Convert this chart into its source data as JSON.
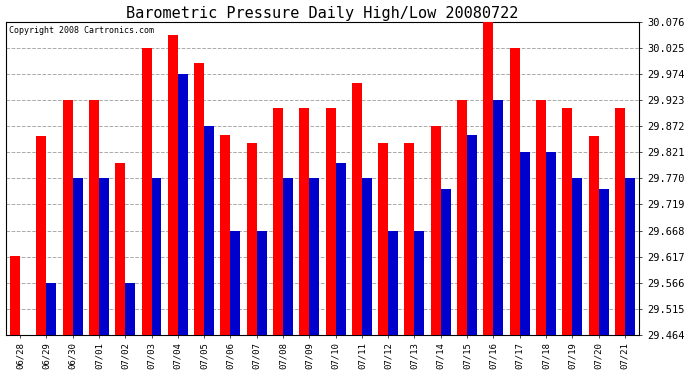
{
  "title": "Barometric Pressure Daily High/Low 20080722",
  "copyright": "Copyright 2008 Cartronics.com",
  "categories": [
    "06/28",
    "06/29",
    "06/30",
    "07/01",
    "07/02",
    "07/03",
    "07/04",
    "07/05",
    "07/06",
    "07/07",
    "07/08",
    "07/09",
    "07/10",
    "07/11",
    "07/12",
    "07/13",
    "07/14",
    "07/15",
    "07/16",
    "07/17",
    "07/18",
    "07/19",
    "07/20",
    "07/21"
  ],
  "highs": [
    29.618,
    29.852,
    29.923,
    29.923,
    29.8,
    30.025,
    30.05,
    29.995,
    29.855,
    29.84,
    29.908,
    29.908,
    29.908,
    29.956,
    29.84,
    29.84,
    29.872,
    29.923,
    30.076,
    30.025,
    29.923,
    29.908,
    29.852,
    29.908
  ],
  "lows": [
    29.464,
    29.566,
    29.77,
    29.77,
    29.566,
    29.77,
    29.974,
    29.872,
    29.668,
    29.668,
    29.77,
    29.77,
    29.8,
    29.77,
    29.668,
    29.668,
    29.75,
    29.855,
    29.923,
    29.821,
    29.821,
    29.77,
    29.75,
    29.77
  ],
  "high_color": "#ff0000",
  "low_color": "#0000cc",
  "bg_color": "#ffffff",
  "grid_color": "#aaaaaa",
  "title_fontsize": 11,
  "ymin": 29.464,
  "ymax": 30.076,
  "yticks": [
    29.464,
    29.515,
    29.566,
    29.617,
    29.668,
    29.719,
    29.77,
    29.821,
    29.872,
    29.923,
    29.974,
    30.025,
    30.076
  ]
}
